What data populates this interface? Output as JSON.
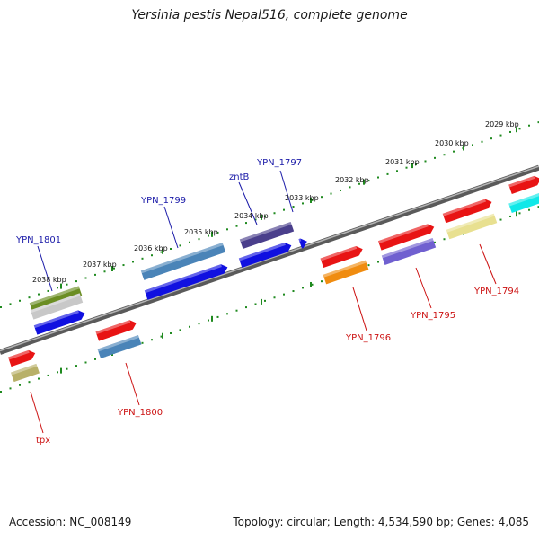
{
  "title": "Yersinia pestis Nepal516, complete genome",
  "accession_text": "Accession: NC_008149",
  "summary_text": "Topology: circular; Length: 4,534,590 bp; Genes: 4,085",
  "colors": {
    "backbone": "#7a7a7a",
    "ruler_dots": "#1f8a1f",
    "forward_label": "#1a1aa8",
    "reverse_label": "#cc1111",
    "tick_label": "#111111"
  },
  "ruler_ticks": [
    "2029 kbp",
    "2030 kbp",
    "2031 kbp",
    "2032 kbp",
    "2033 kbp",
    "2034 kbp",
    "2035 kbp",
    "2036 kbp",
    "2037 kbp",
    "2038 kbp"
  ],
  "forward_labels": [
    "zntB",
    "YPN_1797",
    "YPN_1799",
    "YPN_1801"
  ],
  "reverse_labels": [
    "YPN_1794",
    "YPN_1795",
    "YPN_1796",
    "YPN_1800",
    "tpx"
  ],
  "feature_colors": {
    "red": "#e81414",
    "blue": "#1010e0",
    "steelblue": "#4a84b8",
    "darkslate": "#4a3f8c",
    "olive": "#6b8e23",
    "silver": "#c8c8c8",
    "orange": "#f08c10",
    "mediumslate": "#7060d0",
    "khaki": "#e8e090",
    "cyan": "#10e8e8",
    "darkkhaki": "#b8b068"
  }
}
